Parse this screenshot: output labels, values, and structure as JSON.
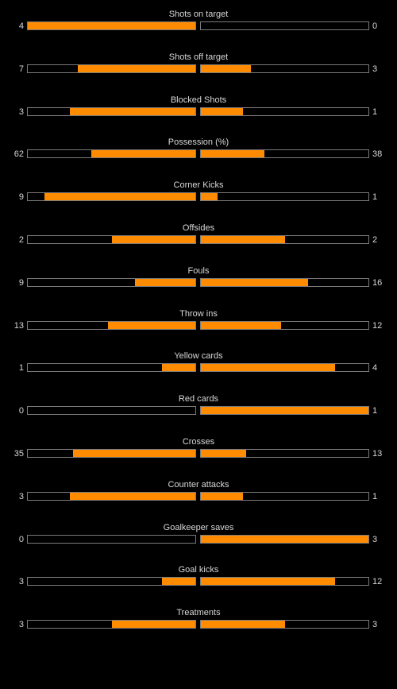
{
  "colors": {
    "background": "#000000",
    "bar_fill": "#ff8c00",
    "bar_border": "#7a7a7a",
    "text": "#d8d8d8"
  },
  "stats": [
    {
      "label": "Shots on target",
      "home": "4",
      "away": "0",
      "home_fraction": 1.0,
      "away_fraction": 0.0
    },
    {
      "label": "Shots off target",
      "home": "7",
      "away": "3",
      "home_fraction": 0.7,
      "away_fraction": 0.3
    },
    {
      "label": "Blocked Shots",
      "home": "3",
      "away": "1",
      "home_fraction": 0.75,
      "away_fraction": 0.25
    },
    {
      "label": "Possession (%)",
      "home": "62",
      "away": "38",
      "home_fraction": 0.62,
      "away_fraction": 0.38
    },
    {
      "label": "Corner Kicks",
      "home": "9",
      "away": "1",
      "home_fraction": 0.9,
      "away_fraction": 0.1
    },
    {
      "label": "Offsides",
      "home": "2",
      "away": "2",
      "home_fraction": 0.5,
      "away_fraction": 0.5
    },
    {
      "label": "Fouls",
      "home": "9",
      "away": "16",
      "home_fraction": 0.36,
      "away_fraction": 0.64
    },
    {
      "label": "Throw ins",
      "home": "13",
      "away": "12",
      "home_fraction": 0.52,
      "away_fraction": 0.48
    },
    {
      "label": "Yellow cards",
      "home": "1",
      "away": "4",
      "home_fraction": 0.2,
      "away_fraction": 0.8
    },
    {
      "label": "Red cards",
      "home": "0",
      "away": "1",
      "home_fraction": 0.0,
      "away_fraction": 1.0
    },
    {
      "label": "Crosses",
      "home": "35",
      "away": "13",
      "home_fraction": 0.729,
      "away_fraction": 0.271
    },
    {
      "label": "Counter attacks",
      "home": "3",
      "away": "1",
      "home_fraction": 0.75,
      "away_fraction": 0.25
    },
    {
      "label": "Goalkeeper saves",
      "home": "0",
      "away": "3",
      "home_fraction": 0.0,
      "away_fraction": 1.0
    },
    {
      "label": "Goal kicks",
      "home": "3",
      "away": "12",
      "home_fraction": 0.2,
      "away_fraction": 0.8
    },
    {
      "label": "Treatments",
      "home": "3",
      "away": "3",
      "home_fraction": 0.5,
      "away_fraction": 0.5
    }
  ]
}
